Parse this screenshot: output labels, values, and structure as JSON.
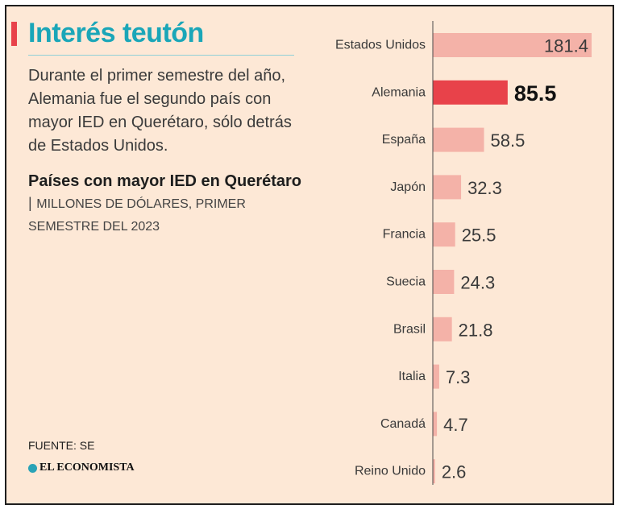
{
  "header": {
    "title": "Interés teutón",
    "intro": "Durante el primer semestre del año, Alemania fue el segundo país con mayor IED en Querétaro, sólo detrás de Estados Unidos.",
    "subtitle_strong": "Países con mayor IED en Querétaro",
    "subtitle_sep": "|",
    "subtitle_units": "MILLONES DE DÓLARES, PRIMER SEMESTRE DEL 2023"
  },
  "footer": {
    "source": "FUENTE: SE",
    "logo": "EL ECONOMISTA"
  },
  "colors": {
    "background": "#fde8d6",
    "bar": "#f4b2a8",
    "highlight": "#e8424a",
    "title": "#1aa6b8"
  },
  "chart_data": {
    "type": "bar",
    "orientation": "horizontal",
    "title": "Países con mayor IED en Querétaro",
    "xlabel": "",
    "ylabel": "",
    "units": "Millones de dólares",
    "highlight": "Alemania",
    "categories": [
      "Estados Unidos",
      "Alemania",
      "España",
      "Japón",
      "Francia",
      "Suecia",
      "Brasil",
      "Italia",
      "Canadá",
      "Reino Unido"
    ],
    "values": [
      181.4,
      85.5,
      58.5,
      32.3,
      25.5,
      24.3,
      21.8,
      7.3,
      4.7,
      2.6
    ],
    "value_labels": [
      "181.4",
      "85.5",
      "58.5",
      "32.3",
      "25.5",
      "24.3",
      "21.8",
      "7.3",
      "4.7",
      "2.6"
    ],
    "xlim": [
      0,
      181.4
    ]
  }
}
